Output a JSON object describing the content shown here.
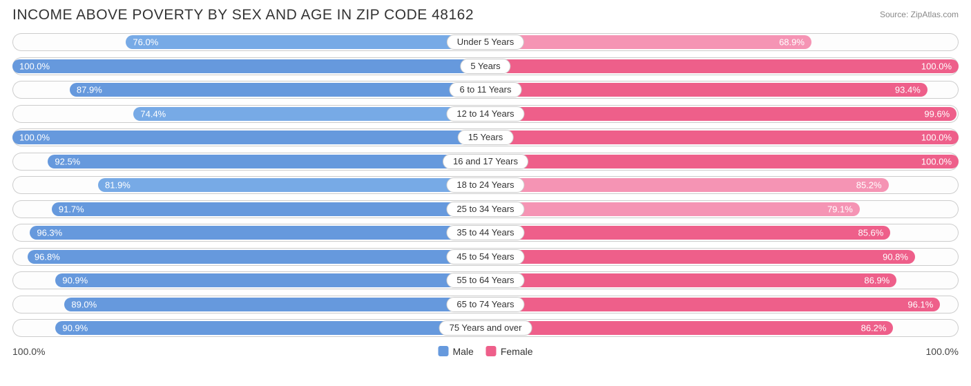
{
  "title": "INCOME ABOVE POVERTY BY SEX AND AGE IN ZIP CODE 48162",
  "source": "Source: ZipAtlas.com",
  "axis": {
    "left": "100.0%",
    "right": "100.0%"
  },
  "colors": {
    "male_base": "#6699dd",
    "male_highlight": "#77aae6",
    "female_base": "#ee5f8a",
    "female_highlight": "#f594b4",
    "track_border": "#cccccc",
    "track_bg": "#fdfdfd",
    "text_on_bar": "#ffffff",
    "background": "#ffffff"
  },
  "legend": [
    {
      "label": "Male",
      "color": "#6699dd"
    },
    {
      "label": "Female",
      "color": "#ee5f8a"
    }
  ],
  "max": 100.0,
  "rows": [
    {
      "category": "Under 5 Years",
      "male": 76.0,
      "female": 68.9
    },
    {
      "category": "5 Years",
      "male": 100.0,
      "female": 100.0
    },
    {
      "category": "6 to 11 Years",
      "male": 87.9,
      "female": 93.4
    },
    {
      "category": "12 to 14 Years",
      "male": 74.4,
      "female": 99.6
    },
    {
      "category": "15 Years",
      "male": 100.0,
      "female": 100.0
    },
    {
      "category": "16 and 17 Years",
      "male": 92.5,
      "female": 100.0
    },
    {
      "category": "18 to 24 Years",
      "male": 81.9,
      "female": 85.2
    },
    {
      "category": "25 to 34 Years",
      "male": 91.7,
      "female": 79.1
    },
    {
      "category": "35 to 44 Years",
      "male": 96.3,
      "female": 85.6
    },
    {
      "category": "45 to 54 Years",
      "male": 96.8,
      "female": 90.8
    },
    {
      "category": "55 to 64 Years",
      "male": 90.9,
      "female": 86.9
    },
    {
      "category": "65 to 74 Years",
      "male": 89.0,
      "female": 96.1
    },
    {
      "category": "75 Years and over",
      "male": 90.9,
      "female": 86.2
    }
  ]
}
